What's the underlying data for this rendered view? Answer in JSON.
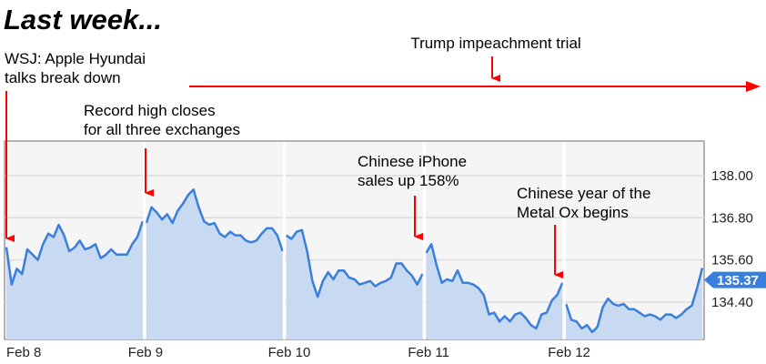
{
  "title": "Last week...",
  "chart_data": {
    "type": "area",
    "ylim": [
      133.34,
      138.98
    ],
    "grid": true,
    "y_ticks": [
      "138.00",
      "136.80",
      "135.60",
      "134.40"
    ],
    "y_tick_values": [
      138.0,
      136.8,
      135.6,
      134.4
    ],
    "x_ticks": [
      "Feb 8",
      "Feb 9",
      "Feb 10",
      "Feb 11",
      "Feb 12"
    ],
    "last_price_label": "135.37",
    "colors": {
      "line": "#3a7fdc",
      "fill": "#c8d9f2",
      "tag": "#3a7fdc",
      "annotation_arrow": "#ff0000"
    },
    "sessions": [
      {
        "date": "Feb 8",
        "start": "09:30",
        "interval_minutes": 15,
        "prices": [
          135.96,
          134.9,
          135.35,
          135.2,
          135.9,
          135.75,
          135.6,
          136.05,
          136.35,
          136.25,
          136.6,
          136.3,
          135.85,
          135.95,
          136.15,
          135.9,
          135.95,
          136.05,
          135.65,
          135.75,
          135.9,
          135.75,
          135.75,
          135.75,
          136.05,
          136.25,
          136.7
        ]
      },
      {
        "date": "Feb 9",
        "start": "09:30",
        "interval_minutes": 15,
        "prices": [
          136.65,
          137.1,
          136.95,
          136.75,
          136.9,
          136.65,
          137.0,
          137.2,
          137.45,
          137.6,
          137.1,
          136.7,
          136.6,
          136.65,
          136.35,
          136.25,
          136.4,
          136.3,
          136.3,
          136.15,
          136.1,
          136.15,
          136.35,
          136.5,
          136.5,
          136.3,
          135.85
        ]
      },
      {
        "date": "Feb 10",
        "start": "09:30",
        "interval_minutes": 15,
        "prices": [
          136.3,
          136.2,
          136.4,
          136.45,
          135.85,
          135.0,
          134.55,
          135.0,
          135.25,
          135.05,
          135.3,
          135.3,
          135.1,
          135.05,
          134.9,
          134.95,
          135.0,
          134.85,
          134.95,
          135.0,
          135.1,
          135.5,
          135.5,
          135.3,
          135.15,
          134.9,
          135.2
        ]
      },
      {
        "date": "Feb 11",
        "start": "09:30",
        "interval_minutes": 15,
        "prices": [
          135.8,
          136.05,
          135.45,
          134.95,
          135.05,
          135.0,
          135.3,
          134.95,
          134.95,
          134.9,
          134.8,
          134.6,
          134.05,
          134.1,
          133.85,
          134.0,
          133.85,
          134.05,
          134.1,
          133.95,
          133.75,
          133.65,
          134.05,
          134.1,
          134.45,
          134.6,
          134.95
        ]
      },
      {
        "date": "Feb 12",
        "start": "09:30",
        "interval_minutes": 15,
        "prices": [
          134.35,
          133.9,
          133.85,
          133.65,
          133.75,
          133.55,
          133.7,
          134.25,
          134.5,
          134.35,
          134.3,
          134.35,
          134.2,
          134.2,
          134.1,
          134.0,
          134.05,
          134.0,
          133.9,
          134.05,
          134.05,
          133.95,
          134.05,
          134.2,
          134.3,
          134.8,
          135.37
        ]
      }
    ],
    "annotations": [
      {
        "lines": [
          "WSJ: Apple Hyundai",
          "talks break down"
        ],
        "date": "Feb 8"
      },
      {
        "lines": [
          "Record high closes",
          "for all three exchanges"
        ],
        "date": "Feb 9"
      },
      {
        "lines": [
          "Trump impeachment trial"
        ],
        "date": "Feb 9 – Feb 12"
      },
      {
        "lines": [
          "Chinese iPhone",
          "sales up 158%"
        ],
        "date": "Feb 11"
      },
      {
        "lines": [
          "Chinese year of the",
          "Metal Ox begins"
        ],
        "date": "Feb 12"
      }
    ]
  }
}
